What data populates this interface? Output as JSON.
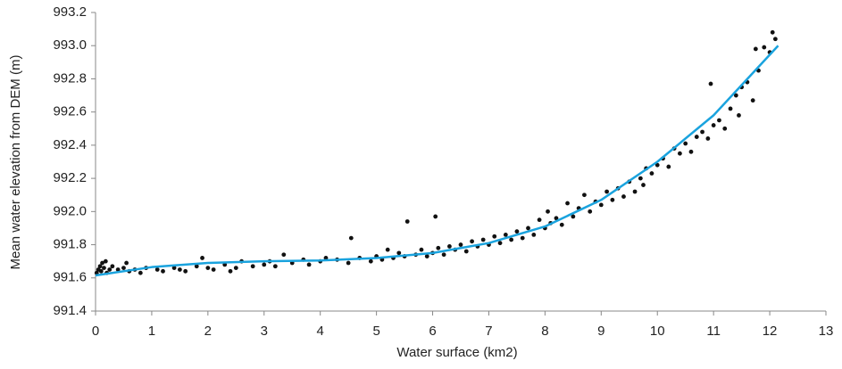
{
  "chart_data": {
    "type": "scatter",
    "xlabel": "Water surface (km2)",
    "ylabel": "Mean water  elevation from DEM (m)",
    "xlim": [
      0,
      13
    ],
    "ylim": [
      991.4,
      993.2
    ],
    "xticks": [
      0,
      1,
      2,
      3,
      4,
      5,
      6,
      7,
      8,
      9,
      10,
      11,
      12,
      13
    ],
    "yticks": [
      991.4,
      991.6,
      991.8,
      {
        "value": 992.0,
        "label": "992.0"
      },
      992.2,
      992.4,
      992.6,
      992.8,
      {
        "value": 993.0,
        "label": "993.0"
      },
      993.2
    ],
    "series": [
      {
        "type": "scatter",
        "color": "#111111",
        "x": [
          0.02,
          0.05,
          0.08,
          0.1,
          0.12,
          0.15,
          0.18,
          0.2,
          0.25,
          0.3,
          0.4,
          0.5,
          0.55,
          0.6,
          0.7,
          0.8,
          0.9,
          1.1,
          1.2,
          1.4,
          1.5,
          1.6,
          1.8,
          1.9,
          2.0,
          2.1,
          2.3,
          2.4,
          2.5,
          2.6,
          2.8,
          3.0,
          3.1,
          3.2,
          3.35,
          3.5,
          3.7,
          3.8,
          4.0,
          4.1,
          4.3,
          4.5,
          4.55,
          4.7,
          4.9,
          5.0,
          5.1,
          5.2,
          5.3,
          5.4,
          5.5,
          5.55,
          5.7,
          5.8,
          5.9,
          6.0,
          6.05,
          6.1,
          6.2,
          6.3,
          6.4,
          6.5,
          6.6,
          6.7,
          6.8,
          6.9,
          7.0,
          7.1,
          7.2,
          7.3,
          7.4,
          7.5,
          7.6,
          7.7,
          7.8,
          7.9,
          8.0,
          8.05,
          8.1,
          8.2,
          8.3,
          8.4,
          8.5,
          8.6,
          8.7,
          8.8,
          8.9,
          9.0,
          9.1,
          9.2,
          9.3,
          9.4,
          9.5,
          9.6,
          9.7,
          9.75,
          9.8,
          9.9,
          10.0,
          10.1,
          10.2,
          10.3,
          10.4,
          10.5,
          10.6,
          10.7,
          10.8,
          10.9,
          10.95,
          11.0,
          11.1,
          11.2,
          11.3,
          11.4,
          11.45,
          11.5,
          11.6,
          11.7,
          11.75,
          11.8,
          11.9,
          12.0,
          12.05,
          12.1
        ],
        "y": [
          991.63,
          991.65,
          991.67,
          991.64,
          991.69,
          991.66,
          991.7,
          991.63,
          991.65,
          991.67,
          991.65,
          991.66,
          991.69,
          991.64,
          991.65,
          991.63,
          991.66,
          991.65,
          991.64,
          991.66,
          991.65,
          991.64,
          991.67,
          991.72,
          991.66,
          991.65,
          991.68,
          991.64,
          991.66,
          991.7,
          991.67,
          991.68,
          991.7,
          991.67,
          991.74,
          991.69,
          991.71,
          991.68,
          991.7,
          991.72,
          991.71,
          991.69,
          991.84,
          991.72,
          991.7,
          991.73,
          991.71,
          991.77,
          991.72,
          991.75,
          991.73,
          991.94,
          991.74,
          991.77,
          991.73,
          991.75,
          991.97,
          991.78,
          991.74,
          991.79,
          991.77,
          991.8,
          991.76,
          991.82,
          991.79,
          991.83,
          991.8,
          991.85,
          991.81,
          991.86,
          991.83,
          991.88,
          991.84,
          991.9,
          991.86,
          991.95,
          991.9,
          992.0,
          991.93,
          991.96,
          991.92,
          992.05,
          991.97,
          992.02,
          992.1,
          992.0,
          992.06,
          992.04,
          992.12,
          992.07,
          992.14,
          992.09,
          992.18,
          992.12,
          992.2,
          992.16,
          992.26,
          992.23,
          992.28,
          992.32,
          992.27,
          992.38,
          992.35,
          992.41,
          992.36,
          992.45,
          992.48,
          992.44,
          992.77,
          992.52,
          992.55,
          992.5,
          992.62,
          992.7,
          992.58,
          992.75,
          992.78,
          992.67,
          992.98,
          992.85,
          992.99,
          992.96,
          993.08,
          993.04
        ]
      },
      {
        "type": "line",
        "color": "#1aa3de",
        "x": [
          0,
          1,
          2,
          3,
          4,
          5,
          6,
          7,
          8,
          9,
          10,
          11,
          12.15
        ],
        "y": [
          991.615,
          991.665,
          991.69,
          991.7,
          991.705,
          991.72,
          991.75,
          991.81,
          991.91,
          992.07,
          992.3,
          992.58,
          993.0
        ]
      }
    ]
  }
}
